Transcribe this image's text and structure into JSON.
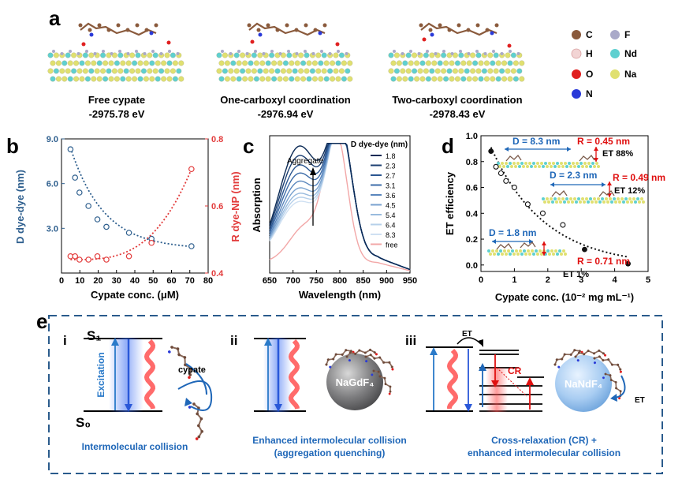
{
  "panel_a": {
    "letter": "a",
    "structures": [
      {
        "label": "Free cypate",
        "energy": "-2975.78 eV"
      },
      {
        "label": "One-carboxyl coordination",
        "energy": "-2976.94 eV"
      },
      {
        "label": "Two-carboxyl coordination",
        "energy": "-2978.43 eV"
      }
    ],
    "legend": [
      {
        "symbol": "C",
        "color": "#8a5a3c"
      },
      {
        "symbol": "F",
        "color": "#a9a9c9"
      },
      {
        "symbol": "H",
        "color": "#f2d4d4"
      },
      {
        "symbol": "Nd",
        "color": "#5fd0d0"
      },
      {
        "symbol": "O",
        "color": "#e02020"
      },
      {
        "symbol": "Na",
        "color": "#e0e070"
      },
      {
        "symbol": "N",
        "color": "#2a3ad8"
      }
    ]
  },
  "panel_b": {
    "letter": "b",
    "chart_data": {
      "type": "scatter",
      "xlabel": "Cypate conc. (μM)",
      "ylabel_left": "D dye-dye (nm)",
      "ylabel_right": "R dye-NP (nm)",
      "xlim": [
        0,
        80
      ],
      "ylim_left": [
        0,
        9
      ],
      "ylim_right": [
        0.4,
        0.8
      ],
      "x_ticks": [
        "0",
        "10",
        "20",
        "30",
        "40",
        "50",
        "60",
        "70",
        "80"
      ],
      "y_left_ticks": [
        "3.0",
        "6.0",
        "9.0"
      ],
      "y_right_ticks": [
        "0.4",
        "0.6",
        "0.8"
      ],
      "series": [
        {
          "axis": "left",
          "color": "#2e5f8e",
          "x": [
            4.9,
            7.4,
            9.8,
            14.7,
            19.6,
            24.5,
            36.8,
            49.1,
            70.9
          ],
          "y": [
            8.3,
            6.4,
            5.4,
            4.5,
            3.6,
            3.1,
            2.7,
            2.3,
            1.8
          ]
        },
        {
          "axis": "right",
          "color": "#e23a3a",
          "x": [
            4.9,
            7.4,
            9.8,
            14.7,
            19.6,
            24.5,
            36.8,
            49.1,
            70.9
          ],
          "y": [
            0.45,
            0.45,
            0.44,
            0.44,
            0.45,
            0.44,
            0.45,
            0.49,
            0.71
          ]
        }
      ]
    }
  },
  "panel_c": {
    "letter": "c",
    "chart_data": {
      "type": "line",
      "xlabel": "Wavelength (nm)",
      "ylabel": "Absorption",
      "xlim": [
        650,
        950
      ],
      "x_ticks": [
        "650",
        "700",
        "750",
        "800",
        "850",
        "900",
        "950"
      ],
      "annotation": "Aggregate",
      "legend_title": "D dye-dye (nm)",
      "series": [
        {
          "name": "1.8",
          "color": "#0b2a55",
          "shoulder": 0.82
        },
        {
          "name": "2.3",
          "color": "#1c3f72",
          "shoulder": 0.75
        },
        {
          "name": "2.7",
          "color": "#2b5690",
          "shoulder": 0.68
        },
        {
          "name": "3.1",
          "color": "#3d6ca8",
          "shoulder": 0.62
        },
        {
          "name": "3.6",
          "color": "#5a86bd",
          "shoulder": 0.56
        },
        {
          "name": "4.5",
          "color": "#7aa2cf",
          "shoulder": 0.51
        },
        {
          "name": "5.4",
          "color": "#99bbde",
          "shoulder": 0.47
        },
        {
          "name": "6.4",
          "color": "#b6d0ea",
          "shoulder": 0.44
        },
        {
          "name": "8.3",
          "color": "#cfe0f2",
          "shoulder": 0.41
        },
        {
          "name": "free",
          "color": "#f2a7a7",
          "shoulder": 0.3
        }
      ]
    }
  },
  "panel_d": {
    "letter": "d",
    "chart_data": {
      "type": "scatter",
      "xlabel": "Cypate conc. (10⁻² mg mL⁻¹)",
      "ylabel": "ET efficiency",
      "xlim": [
        0,
        5
      ],
      "ylim": [
        -0.05,
        1.0
      ],
      "x_ticks": [
        "0",
        "1",
        "2",
        "3",
        "4",
        "5"
      ],
      "y_ticks": [
        "0.0",
        "0.2",
        "0.4",
        "0.6",
        "0.8",
        "1.0"
      ],
      "points_open": {
        "x": [
          0.45,
          0.6,
          0.75,
          1.0,
          1.4,
          1.85,
          2.45
        ],
        "y": [
          0.76,
          0.71,
          0.65,
          0.6,
          0.47,
          0.4,
          0.31
        ]
      },
      "points_filled": {
        "x": [
          0.3,
          3.1,
          4.4
        ],
        "y": [
          0.88,
          0.12,
          0.01
        ]
      },
      "annotations": [
        {
          "D": "D = 8.3 nm",
          "R": "R = 0.45 nm",
          "ET": "ET 88%"
        },
        {
          "D": "D = 2.3 nm",
          "R": "R = 0.49 nm",
          "ET": "ET 12%"
        },
        {
          "D": "D = 1.8 nm",
          "R": "R = 0.71 nm",
          "ET": "ET 1%"
        }
      ]
    }
  },
  "panel_e": {
    "letter": "e",
    "i": {
      "numeral": "i",
      "s1": "S₁",
      "s0": "S₀",
      "excitation": "Excitation",
      "cypate": "cypate",
      "caption": "Intermolecular collision"
    },
    "ii": {
      "numeral": "ii",
      "np": "NaGdF₄",
      "caption_line1": "Enhanced intermolecular collision",
      "caption_line2": "(aggregation quenching)"
    },
    "iii": {
      "numeral": "iii",
      "et_top": "ET",
      "cr": "CR",
      "np": "NaNdF₄",
      "et_side": "ET",
      "caption_line1": "Cross-relaxation (CR) +",
      "caption_line2": "enhanced intermolecular collision"
    }
  }
}
